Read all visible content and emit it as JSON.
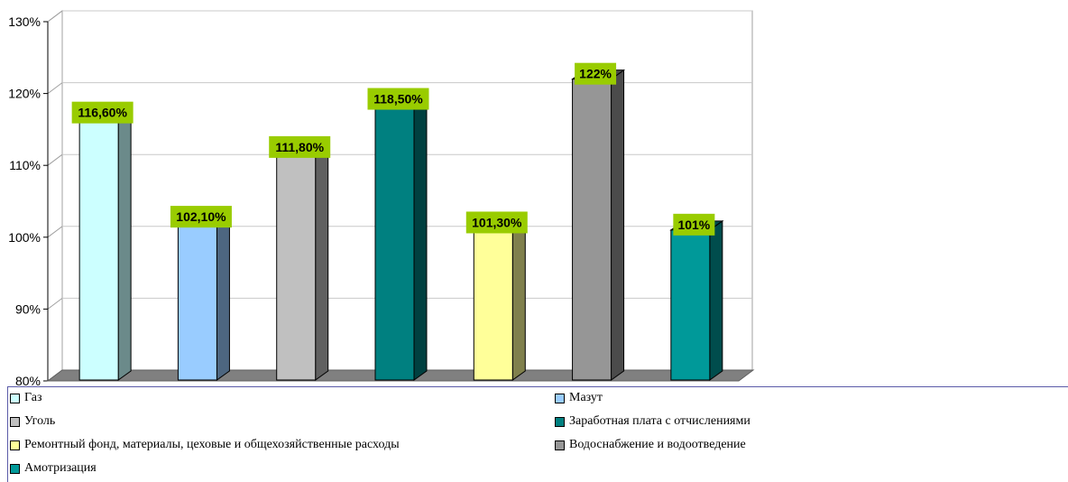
{
  "chart_data": {
    "type": "bar",
    "title": "",
    "xlabel": "",
    "ylabel": "",
    "ylim": [
      80,
      130
    ],
    "y_ticks": [
      "80%",
      "90%",
      "100%",
      "110%",
      "120%",
      "130%"
    ],
    "y_tick_values": [
      80,
      90,
      100,
      110,
      120,
      130
    ],
    "grid": true,
    "legend_position": "bottom",
    "series": [
      {
        "name": "Газ",
        "value": 116.6,
        "label": "116,60%",
        "color": "#ccffff",
        "side_color": "#6b8a8a"
      },
      {
        "name": "Мазут",
        "value": 102.1,
        "label": "102,10%",
        "color": "#99ccff",
        "side_color": "#4d6680"
      },
      {
        "name": "Уголь",
        "value": 111.8,
        "label": "111,80%",
        "color": "#c0c0c0",
        "side_color": "#606060"
      },
      {
        "name": "Заработная плата с отчислениями",
        "value": 118.5,
        "label": "118,50%",
        "color": "#008080",
        "side_color": "#004040"
      },
      {
        "name": "Ремонтный фонд, материалы, цеховые и общехозяйственные расходы",
        "value": 101.3,
        "label": "101,30%",
        "color": "#ffff99",
        "side_color": "#80804d"
      },
      {
        "name": "Водоснабжение и водоотведение",
        "value": 122,
        "label": "122%",
        "color": "#969696",
        "side_color": "#4b4b4b"
      },
      {
        "name": "Амотризация",
        "value": 101,
        "label": "101%",
        "color": "#009999",
        "side_color": "#004d4d"
      }
    ],
    "data_label_color": "#99cc00"
  }
}
